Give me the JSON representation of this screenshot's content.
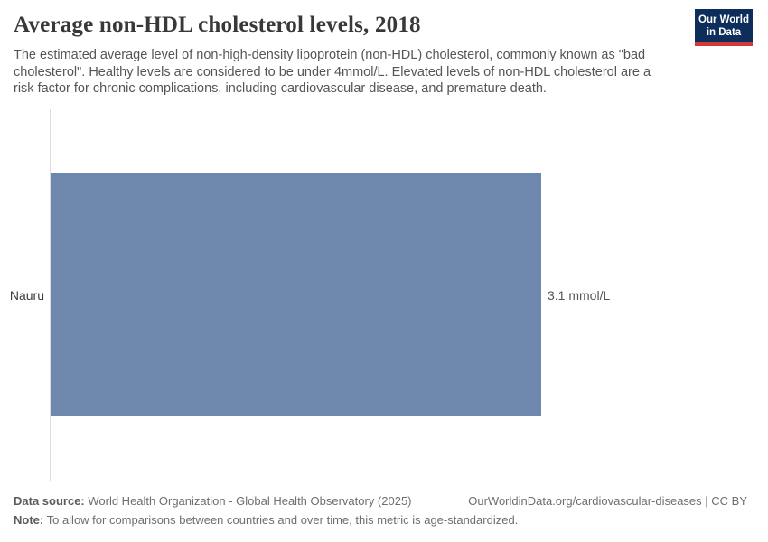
{
  "header": {
    "title": "Average non-HDL cholesterol levels, 2018",
    "subtitle": "The estimated average level of non-high-density lipoprotein (non-HDL) cholesterol, commonly known as \"bad cholesterol\". Healthy levels are considered to be under 4mmol/L. Elevated levels of non-HDL cholesterol are a risk factor for chronic complications, including cardiovascular disease, and premature death.",
    "logo": {
      "line1": "Our World",
      "line2": "in Data"
    }
  },
  "chart_data": {
    "type": "bar",
    "orientation": "horizontal",
    "title": "Average non-HDL cholesterol levels, 2018",
    "categories": [
      "Nauru"
    ],
    "values": [
      3.1
    ],
    "unit": "mmol/L",
    "value_labels": [
      "3.1 mmol/L"
    ],
    "xlim": [
      0,
      3.1
    ],
    "grid": false,
    "legend": "none",
    "bar_color": "#6e87ad"
  },
  "footer": {
    "datasource_label": "Data source:",
    "datasource_text": " World Health Organization - Global Health Observatory (2025)",
    "url_text": "OurWorldinData.org/cardiovascular-diseases | CC BY",
    "note_label": "Note:",
    "note_text": " To allow for comparisons between countries and over time, this metric is age-standardized."
  },
  "colors": {
    "bar": "#6e87ad",
    "logo_navy": "#0d2e5b",
    "logo_red": "#cf3b38",
    "axis_line": "#dcdce2"
  }
}
